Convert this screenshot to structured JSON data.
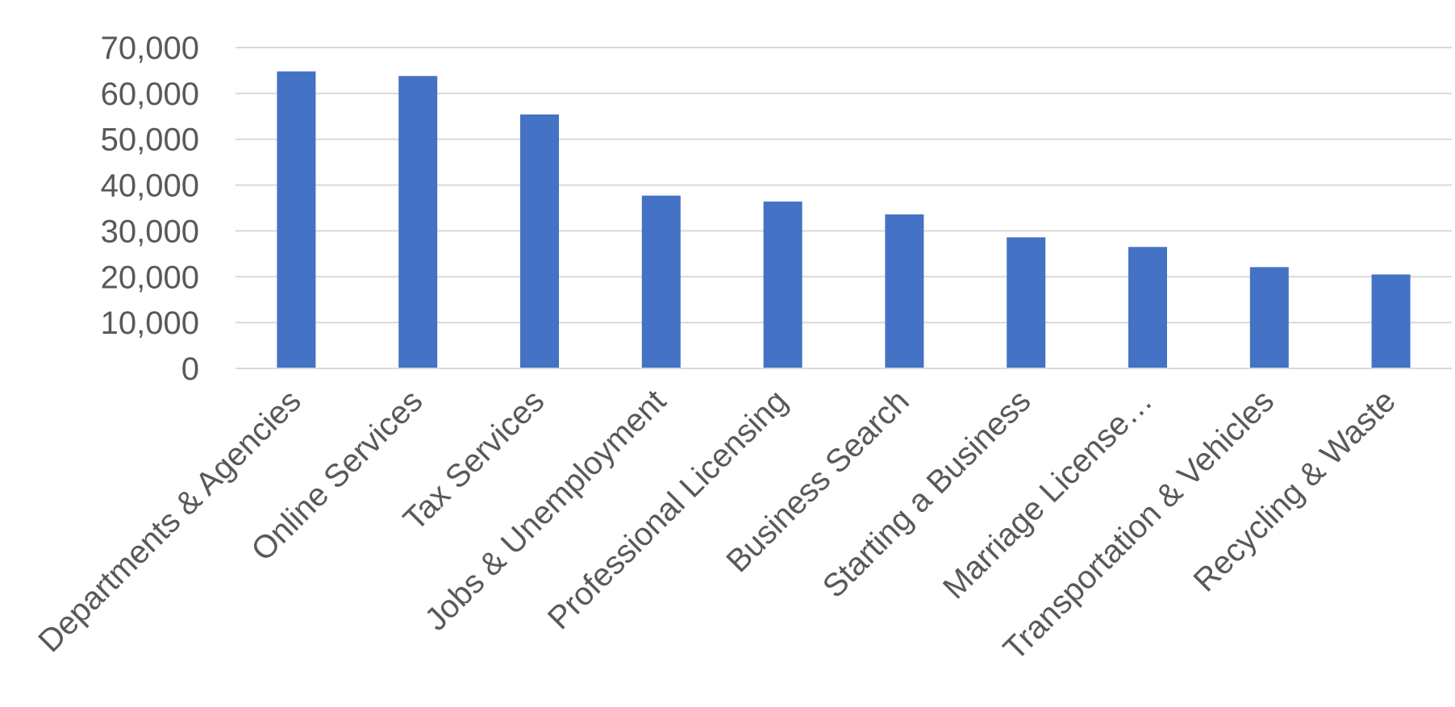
{
  "chart_data": {
    "type": "bar",
    "categories": [
      "Departments & Agencies",
      "Online Services",
      "Tax Services",
      "Jobs & Unemployment",
      "Professional Licensing",
      "Business Search",
      "Starting a Business",
      "Marriage License…",
      "Transportation & Vehicles",
      "Recycling & Waste"
    ],
    "values": [
      64800,
      63800,
      55400,
      37700,
      36400,
      33600,
      28600,
      26500,
      22100,
      20500
    ],
    "ylim": [
      0,
      70000
    ],
    "yticks": [
      0,
      10000,
      20000,
      30000,
      40000,
      50000,
      60000,
      70000
    ],
    "ytick_labels": [
      "0",
      "10,000",
      "20,000",
      "30,000",
      "40,000",
      "50,000",
      "60,000",
      "70,000"
    ],
    "title": "",
    "xlabel": "",
    "ylabel": "",
    "grid": true,
    "legend": "none",
    "bar_color": "#4472c4"
  }
}
